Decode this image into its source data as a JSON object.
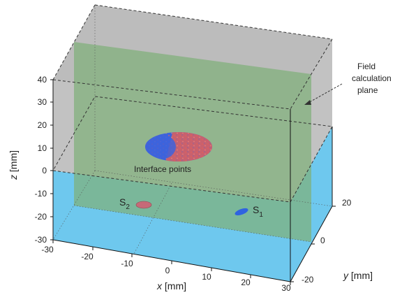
{
  "colors": {
    "water": "#6ec8ee",
    "air": "#bdbdbd",
    "plane": "#7fb07a",
    "blue": "#3d63dc",
    "red": "#e0605a",
    "source2": "#c66a78",
    "source1": "#2f63e0"
  },
  "axes": {
    "x": {
      "ticks": [
        "-30",
        "-20",
        "-10",
        "0",
        "10",
        "20",
        "30"
      ],
      "label_var": "x",
      "label_unit": " [mm]"
    },
    "y": {
      "ticks": [
        "-20",
        "0",
        "20"
      ],
      "label_var": "y",
      "label_unit": " [mm]"
    },
    "z": {
      "ticks": [
        "40",
        "30",
        "20",
        "10",
        "0",
        "-10",
        "-20",
        "-30"
      ],
      "label_var": "z",
      "label_unit": " [mm]"
    }
  },
  "annotations": {
    "interface_points": "Interface points",
    "field_plane": [
      "Field",
      "calculation",
      "plane"
    ]
  },
  "sources": [
    {
      "letter": "S",
      "sub": "2"
    },
    {
      "letter": "S",
      "sub": "1"
    }
  ]
}
